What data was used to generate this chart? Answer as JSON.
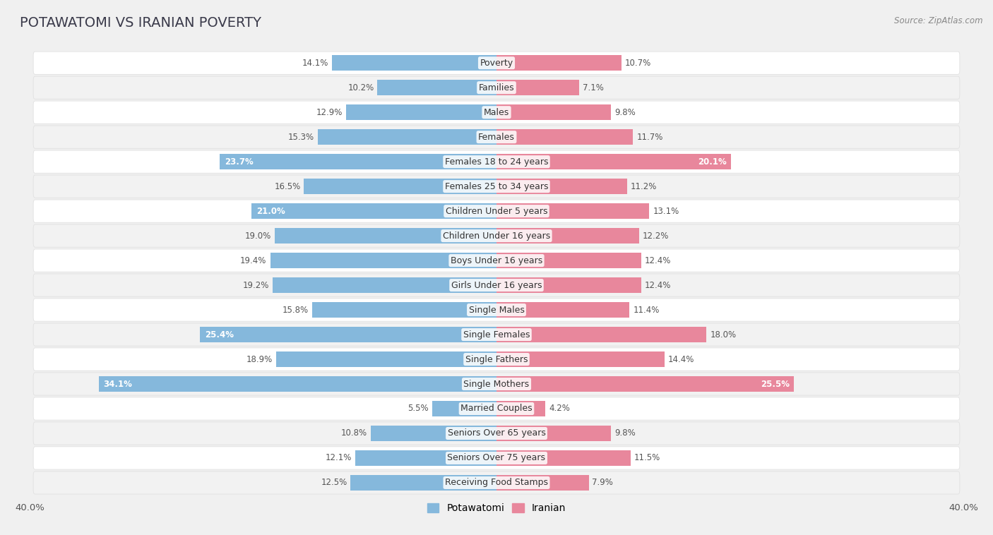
{
  "title": "POTAWATOMI VS IRANIAN POVERTY",
  "source": "Source: ZipAtlas.com",
  "categories": [
    "Poverty",
    "Families",
    "Males",
    "Females",
    "Females 18 to 24 years",
    "Females 25 to 34 years",
    "Children Under 5 years",
    "Children Under 16 years",
    "Boys Under 16 years",
    "Girls Under 16 years",
    "Single Males",
    "Single Females",
    "Single Fathers",
    "Single Mothers",
    "Married Couples",
    "Seniors Over 65 years",
    "Seniors Over 75 years",
    "Receiving Food Stamps"
  ],
  "potawatomi": [
    14.1,
    10.2,
    12.9,
    15.3,
    23.7,
    16.5,
    21.0,
    19.0,
    19.4,
    19.2,
    15.8,
    25.4,
    18.9,
    34.1,
    5.5,
    10.8,
    12.1,
    12.5
  ],
  "iranian": [
    10.7,
    7.1,
    9.8,
    11.7,
    20.1,
    11.2,
    13.1,
    12.2,
    12.4,
    12.4,
    11.4,
    18.0,
    14.4,
    25.5,
    4.2,
    9.8,
    11.5,
    7.9
  ],
  "potawatomi_color": "#85b8dc",
  "iranian_color": "#e8879c",
  "xlim": 40.0,
  "bar_height": 0.62,
  "background_color": "#f0f0f0",
  "row_color_odd": "#f9f9f9",
  "row_color_even": "#f0f0f0",
  "label_fontsize": 9.0,
  "value_fontsize": 8.5,
  "title_fontsize": 14,
  "title_color": "#3a3a4a"
}
